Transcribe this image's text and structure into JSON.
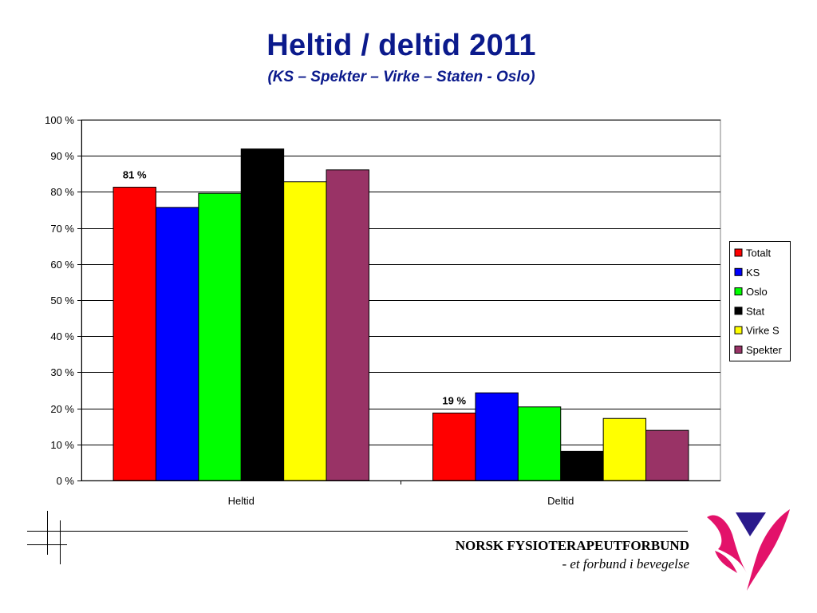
{
  "title": "Heltid / deltid 2011",
  "subtitle": "(KS – Spekter – Virke – Staten - Oslo)",
  "chart_data": {
    "type": "bar",
    "categories": [
      "Heltid",
      "Deltid"
    ],
    "series": [
      {
        "name": "Totalt",
        "color": "#ff0000",
        "values": [
          81.3,
          18.7
        ]
      },
      {
        "name": "KS",
        "color": "#0000ff",
        "values": [
          75.7,
          24.3
        ]
      },
      {
        "name": "Oslo",
        "color": "#00ff00",
        "values": [
          79.6,
          20.4
        ]
      },
      {
        "name": "Stat",
        "color": "#000000",
        "values": [
          91.9,
          8.1
        ]
      },
      {
        "name": "Virke S",
        "color": "#ffff00",
        "values": [
          82.8,
          17.2
        ]
      },
      {
        "name": "Spekter",
        "color": "#993366",
        "values": [
          86.1,
          13.9
        ]
      }
    ],
    "data_labels": [
      {
        "series": "Totalt",
        "category": "Heltid",
        "text": "81 %"
      },
      {
        "series": "Totalt",
        "category": "Deltid",
        "text": "19 %"
      }
    ],
    "y_ticks": [
      "0 %",
      "10 %",
      "20 %",
      "30 %",
      "40 %",
      "50 %",
      "60 %",
      "70 %",
      "80 %",
      "90 %",
      "100 %"
    ],
    "ylim": [
      0,
      100
    ],
    "grid": true,
    "legend_position": "right"
  },
  "footer": {
    "org_name": "NORSK FYSIOTERAPEUTFORBUND",
    "tagline": "- et forbund i bevegelse"
  }
}
